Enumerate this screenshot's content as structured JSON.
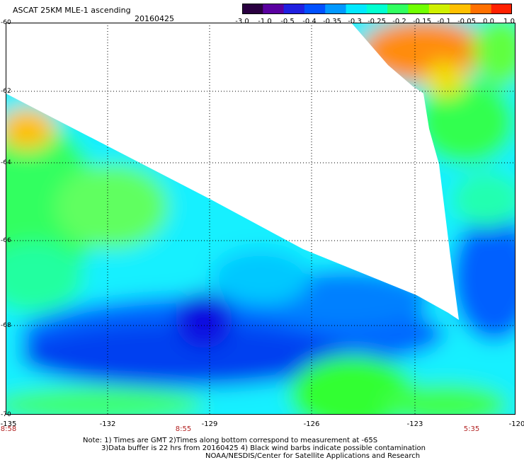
{
  "header": {
    "title": "ASCAT 25KM MLE-1 ascending",
    "date": "20160425"
  },
  "colorbar": {
    "ticks": [
      "-3.0",
      "-1.0",
      "-0.5",
      "-0.4",
      "-0.35",
      "-0.3",
      "-0.25",
      "-0.2",
      "-0.15",
      "-0.1",
      "-0.05",
      "0.0",
      "1.0"
    ],
    "colors": [
      "#2a0040",
      "#5a00a0",
      "#2020e0",
      "#0050ff",
      "#0098ff",
      "#00e8ff",
      "#00ffd0",
      "#30ff60",
      "#70ff00",
      "#d0f000",
      "#ffc000",
      "#ff7000",
      "#ff2000"
    ]
  },
  "axes": {
    "lat_ticks": [
      "-60",
      "-62",
      "-64",
      "-66",
      "-68",
      "-70"
    ],
    "lon_ticks": [
      "-135",
      "-132",
      "-129",
      "-126",
      "-123",
      "-120"
    ],
    "lat_range": [
      -70,
      -60
    ],
    "lon_range": [
      -135,
      -120
    ]
  },
  "times": [
    "8:58",
    "8:55",
    "5:35"
  ],
  "notes": {
    "line1": "Note: 1) Times are GMT 2)Times along bottom correspond to measurement at -65S",
    "line2": "3)Data buffer is 22 hrs from 20160425 4) Black wind barbs indicate possible contamination",
    "line3": "NOAA/NESDIS/Center for Satellite Applications and Research"
  }
}
